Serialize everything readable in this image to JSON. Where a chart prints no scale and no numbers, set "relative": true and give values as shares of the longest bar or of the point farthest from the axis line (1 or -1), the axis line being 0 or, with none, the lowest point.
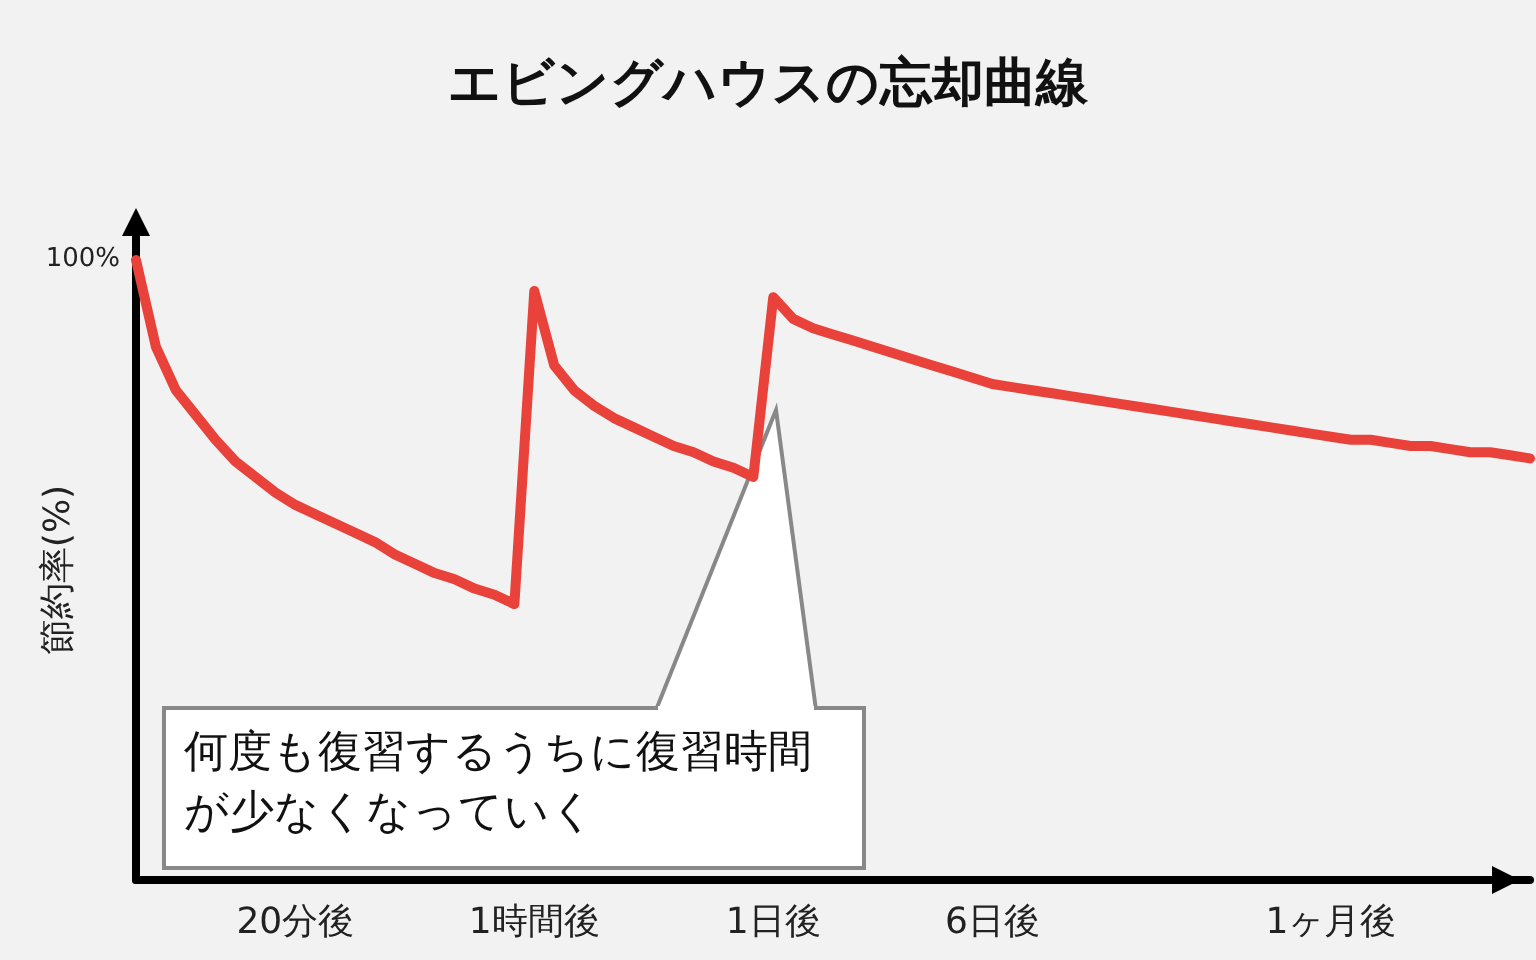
{
  "chart_data": {
    "type": "line",
    "title": "エビングハウスの忘却曲線",
    "ylabel": "節約率(%)",
    "relative": true,
    "categories": [
      null,
      null,
      null,
      null,
      null,
      null,
      null,
      null,
      "20分後",
      null,
      null,
      null,
      null,
      null,
      null,
      null,
      null,
      null,
      null,
      null,
      "1時間後",
      null,
      null,
      null,
      null,
      null,
      null,
      null,
      null,
      null,
      null,
      null,
      "1日後",
      null,
      null,
      null,
      null,
      null,
      null,
      null,
      null,
      null,
      null,
      "6日後",
      null,
      null,
      null,
      null,
      null,
      null,
      null,
      null,
      null,
      null,
      null,
      null,
      null,
      null,
      null,
      null,
      "1ヶ月後",
      null,
      null,
      null,
      null,
      null,
      null,
      null,
      null,
      null,
      null
    ],
    "series": [
      {
        "color": "#e8423a",
        "values": [
          1.0,
          0.86,
          0.79,
          0.75,
          0.71,
          0.675,
          0.65,
          0.625,
          0.605,
          0.59,
          0.575,
          0.56,
          0.545,
          0.525,
          0.51,
          0.495,
          0.485,
          0.47,
          0.46,
          0.445,
          0.95,
          0.83,
          0.79,
          0.765,
          0.745,
          0.73,
          0.715,
          0.7,
          0.69,
          0.675,
          0.665,
          0.65,
          0.94,
          0.905,
          0.89,
          0.88,
          0.87,
          0.86,
          0.85,
          0.84,
          0.83,
          0.82,
          0.81,
          0.8,
          0.795,
          0.79,
          0.785,
          0.78,
          0.775,
          0.77,
          0.765,
          0.76,
          0.755,
          0.75,
          0.745,
          0.74,
          0.735,
          0.73,
          0.725,
          0.72,
          0.715,
          0.71,
          0.71,
          0.705,
          0.7,
          0.7,
          0.695,
          0.69,
          0.69,
          0.685,
          0.68
        ]
      }
    ],
    "annotations": [
      "100%",
      "何度も復習するうちに復習時間が少なくなっていく"
    ],
    "marker": "none",
    "line_style": "solid"
  }
}
